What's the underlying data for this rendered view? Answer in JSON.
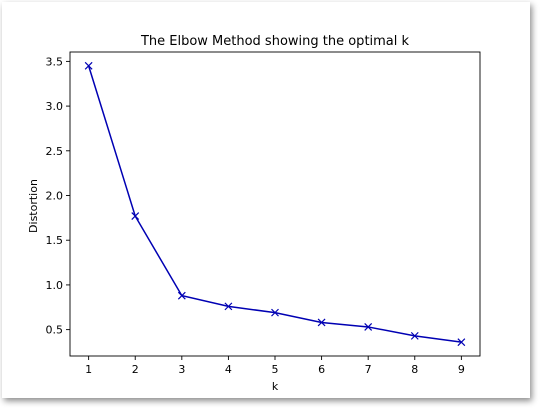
{
  "chart_data": {
    "type": "line",
    "title": "The Elbow Method showing the optimal k",
    "xlabel": "k",
    "ylabel": "Distortion",
    "x": [
      1,
      2,
      3,
      4,
      5,
      6,
      7,
      8,
      9
    ],
    "series": [
      {
        "values": [
          3.45,
          1.77,
          0.88,
          0.76,
          0.69,
          0.58,
          0.53,
          0.43,
          0.36
        ]
      }
    ],
    "xticks": [
      "1",
      "2",
      "3",
      "4",
      "5",
      "6",
      "7",
      "8",
      "9"
    ],
    "yticks": [
      "0.5",
      "1.0",
      "1.5",
      "2.0",
      "2.5",
      "3.0",
      "3.5"
    ],
    "ytick_values": [
      0.5,
      1.0,
      1.5,
      2.0,
      2.5,
      3.0,
      3.5
    ],
    "xlim": [
      0.6,
      9.4
    ],
    "ylim": [
      0.205,
      3.605
    ],
    "grid": false,
    "marker": "x",
    "line_color": "#0000b3"
  }
}
